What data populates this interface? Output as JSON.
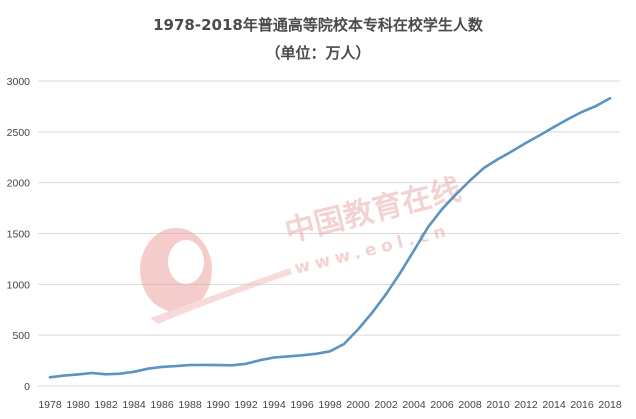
{
  "chart_data": {
    "type": "line",
    "title": "1978-2018年普通高等院校本专科在校学生人数",
    "subtitle": "（单位：万人）",
    "xlabel": "",
    "ylabel": "",
    "ylim": [
      0,
      3000
    ],
    "yticks": [
      "0",
      "500",
      "1000",
      "1500",
      "2000",
      "2500",
      "3000"
    ],
    "xtick_labels": [
      "1978",
      "1980",
      "1982",
      "1984",
      "1986",
      "1988",
      "1990",
      "1992",
      "1994",
      "1996",
      "1998",
      "2000",
      "2002",
      "2004",
      "2006",
      "2008",
      "2010",
      "2012",
      "2014",
      "2016",
      "2018"
    ],
    "grid": true,
    "legend": "none",
    "x": [
      1978,
      1979,
      1980,
      1981,
      1982,
      1983,
      1984,
      1985,
      1986,
      1987,
      1988,
      1989,
      1990,
      1991,
      1992,
      1993,
      1994,
      1995,
      1996,
      1997,
      1998,
      1999,
      2000,
      2001,
      2002,
      2003,
      2004,
      2005,
      2006,
      2007,
      2008,
      2009,
      2010,
      2011,
      2012,
      2013,
      2014,
      2015,
      2016,
      2017,
      2018
    ],
    "series": [
      {
        "values": [
          86,
          102,
          114,
          128,
          115,
          121,
          140,
          170,
          188,
          196,
          207,
          208,
          206,
          204,
          218,
          254,
          280,
          291,
          302,
          317,
          341,
          413,
          556,
          719,
          903,
          1109,
          1334,
          1562,
          1739,
          1885,
          2021,
          2145,
          2232,
          2309,
          2391,
          2468,
          2548,
          2625,
          2696,
          2754,
          2831
        ],
        "color": "#5b93c2"
      }
    ]
  },
  "watermark": {
    "logo_text": "eol",
    "text_cn": "中国教育在线",
    "url": "www.eol.cn",
    "color": "#e9b0b0"
  }
}
